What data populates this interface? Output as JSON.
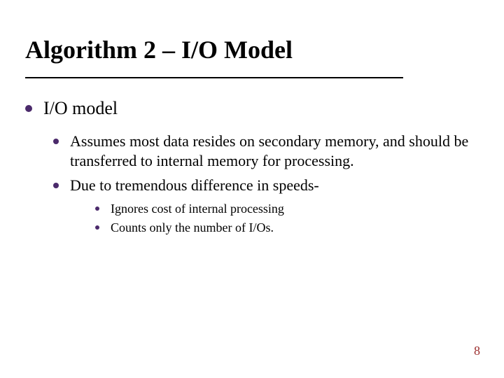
{
  "colors": {
    "bullet": "#4b2a6b",
    "text": "#000000",
    "rule": "#000000",
    "pagenum": "#9c2f2f",
    "background": "#ffffff"
  },
  "fonts": {
    "family": "Times New Roman",
    "title_size_pt": 36,
    "title_weight": "bold",
    "lvl1_size_pt": 26,
    "lvl2_size_pt": 22,
    "lvl3_size_pt": 18,
    "pagenum_size_pt": 18
  },
  "title": "Algorithm 2 – I/O Model",
  "lvl1": {
    "text": "I/O model"
  },
  "lvl2": [
    {
      "text": "Assumes most data resides on secondary memory, and should be transferred to internal memory for processing."
    },
    {
      "text": "Due to tremendous difference in speeds-"
    }
  ],
  "lvl3": [
    {
      "text": "Ignores cost of internal processing"
    },
    {
      "text": "Counts only the number of I/Os."
    }
  ],
  "page_number": "8"
}
